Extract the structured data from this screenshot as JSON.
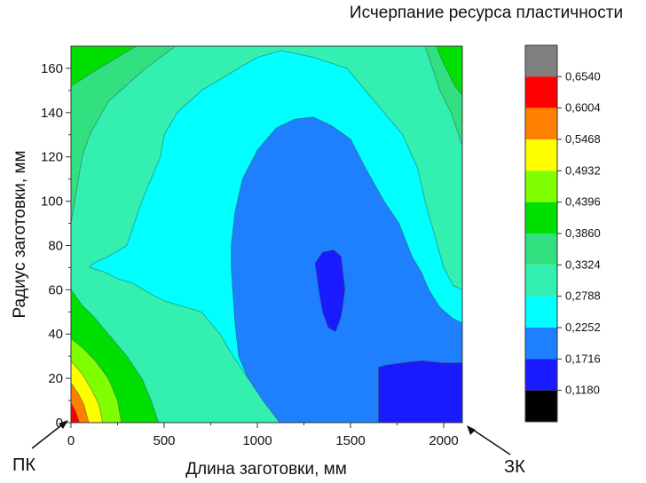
{
  "chart_data": {
    "type": "heatmap",
    "subtype": "filled-contour",
    "title": "Исчерпание ресурса пластичности",
    "xlabel": "Длина заготовки, мм",
    "ylabel": "Радиус заготовки, мм",
    "xlim": [
      0,
      2100
    ],
    "ylim": [
      0,
      170
    ],
    "x_ticks": [
      "0",
      "500",
      "1000",
      "1500",
      "2000"
    ],
    "x_tick_values": [
      0,
      500,
      1000,
      1500,
      2000
    ],
    "y_ticks": [
      "0",
      "20",
      "40",
      "60",
      "80",
      "100",
      "120",
      "140",
      "160"
    ],
    "y_tick_values": [
      0,
      20,
      40,
      60,
      80,
      100,
      120,
      140,
      160
    ],
    "grid": false,
    "colorbar": {
      "placement": "right",
      "levels": [
        "0,6540",
        "0,6004",
        "0,5468",
        "0,4932",
        "0,4396",
        "0,3860",
        "0,3324",
        "0,2788",
        "0,2252",
        "0,1716",
        "0,1180"
      ],
      "level_values": [
        0.654,
        0.6004,
        0.5468,
        0.4932,
        0.4396,
        0.386,
        0.3324,
        0.2788,
        0.2252,
        0.1716,
        0.118
      ],
      "colors_top_to_bottom": [
        "#808080",
        "#ff0000",
        "#ff8000",
        "#ffff00",
        "#80ff00",
        "#00e000",
        "#33e080",
        "#33f0b0",
        "#00ffff",
        "#1e7fff",
        "#1a1aff",
        "#000000"
      ]
    },
    "regions": [
      {
        "color": "#33e080",
        "points": [
          [
            0,
            0
          ],
          [
            2100,
            0
          ],
          [
            2100,
            170
          ],
          [
            0,
            170
          ]
        ]
      },
      {
        "color": "#33f0b0",
        "points": [
          [
            0,
            90
          ],
          [
            30,
            105
          ],
          [
            60,
            120
          ],
          [
            100,
            130
          ],
          [
            200,
            145
          ],
          [
            400,
            160
          ],
          [
            560,
            170
          ],
          [
            1900,
            170
          ],
          [
            1980,
            150
          ],
          [
            2040,
            140
          ],
          [
            2100,
            125
          ],
          [
            2100,
            0
          ],
          [
            0,
            0
          ]
        ]
      },
      {
        "color": "#00ffff",
        "points": [
          [
            100,
            70
          ],
          [
            120,
            72
          ],
          [
            200,
            75
          ],
          [
            300,
            80
          ],
          [
            380,
            100
          ],
          [
            480,
            120
          ],
          [
            500,
            130
          ],
          [
            570,
            140
          ],
          [
            700,
            150
          ],
          [
            900,
            160
          ],
          [
            1000,
            165
          ],
          [
            1130,
            168
          ],
          [
            1300,
            165
          ],
          [
            1480,
            160
          ],
          [
            1580,
            150
          ],
          [
            1680,
            140
          ],
          [
            1780,
            130
          ],
          [
            1860,
            115
          ],
          [
            1900,
            100
          ],
          [
            1950,
            85
          ],
          [
            2000,
            70
          ],
          [
            2050,
            62
          ],
          [
            2100,
            60
          ],
          [
            2100,
            0
          ],
          [
            1120,
            0
          ],
          [
            1050,
            10
          ],
          [
            950,
            20
          ],
          [
            870,
            30
          ],
          [
            800,
            40
          ],
          [
            700,
            50
          ],
          [
            500,
            55
          ],
          [
            430,
            58
          ],
          [
            330,
            63
          ],
          [
            250,
            65
          ],
          [
            180,
            68
          ]
        ]
      },
      {
        "color": "#1e7fff",
        "points": [
          [
            860,
            80
          ],
          [
            880,
            95
          ],
          [
            920,
            110
          ],
          [
            1000,
            123
          ],
          [
            1100,
            133
          ],
          [
            1200,
            137
          ],
          [
            1300,
            138
          ],
          [
            1400,
            134
          ],
          [
            1500,
            128
          ],
          [
            1580,
            115
          ],
          [
            1680,
            100
          ],
          [
            1760,
            90
          ],
          [
            1830,
            75
          ],
          [
            1880,
            68
          ],
          [
            1920,
            60
          ],
          [
            1980,
            52
          ],
          [
            2050,
            47
          ],
          [
            2100,
            45
          ],
          [
            2100,
            0
          ],
          [
            1120,
            0
          ],
          [
            1030,
            10
          ],
          [
            950,
            20
          ],
          [
            900,
            30
          ],
          [
            880,
            45
          ],
          [
            860,
            70
          ]
        ]
      },
      {
        "color": "#1a1aff",
        "points": [
          [
            1310,
            72
          ],
          [
            1350,
            77
          ],
          [
            1410,
            78
          ],
          [
            1450,
            75
          ],
          [
            1470,
            60
          ],
          [
            1450,
            48
          ],
          [
            1420,
            41
          ],
          [
            1380,
            43
          ],
          [
            1350,
            50
          ],
          [
            1330,
            60
          ]
        ]
      },
      {
        "color": "#1a1aff",
        "points": [
          [
            1650,
            0
          ],
          [
            1650,
            25
          ],
          [
            1690,
            26
          ],
          [
            1780,
            27
          ],
          [
            1880,
            28
          ],
          [
            2000,
            27
          ],
          [
            2100,
            27
          ],
          [
            2100,
            0
          ]
        ]
      },
      {
        "color": "#00e000",
        "points": [
          [
            0,
            60
          ],
          [
            60,
            53
          ],
          [
            120,
            48
          ],
          [
            200,
            40
          ],
          [
            300,
            30
          ],
          [
            380,
            20
          ],
          [
            430,
            10
          ],
          [
            470,
            0
          ],
          [
            0,
            0
          ]
        ]
      },
      {
        "color": "#00e000",
        "points": [
          [
            2100,
            148
          ],
          [
            2060,
            152
          ],
          [
            2000,
            162
          ],
          [
            1960,
            170
          ],
          [
            2100,
            170
          ]
        ]
      },
      {
        "color": "#80ff00",
        "points": [
          [
            0,
            38
          ],
          [
            60,
            34
          ],
          [
            130,
            28
          ],
          [
            200,
            20
          ],
          [
            250,
            10
          ],
          [
            270,
            0
          ],
          [
            0,
            0
          ]
        ]
      },
      {
        "color": "#ffff00",
        "points": [
          [
            0,
            28
          ],
          [
            60,
            22
          ],
          [
            110,
            15
          ],
          [
            150,
            8
          ],
          [
            170,
            0
          ],
          [
            0,
            0
          ]
        ]
      },
      {
        "color": "#ff8000",
        "points": [
          [
            0,
            18
          ],
          [
            40,
            13
          ],
          [
            70,
            8
          ],
          [
            95,
            0
          ],
          [
            0,
            0
          ]
        ]
      },
      {
        "color": "#ff0000",
        "points": [
          [
            0,
            9
          ],
          [
            25,
            5
          ],
          [
            45,
            0
          ],
          [
            0,
            0
          ]
        ]
      },
      {
        "color": "#00e000",
        "points": [
          [
            0,
            152
          ],
          [
            150,
            160
          ],
          [
            350,
            170
          ],
          [
            0,
            170
          ]
        ]
      }
    ],
    "annotations": [
      {
        "text": "ПК",
        "x": 0,
        "y": 0
      },
      {
        "text": "ЗК",
        "x": 2100,
        "y": 0
      }
    ]
  }
}
